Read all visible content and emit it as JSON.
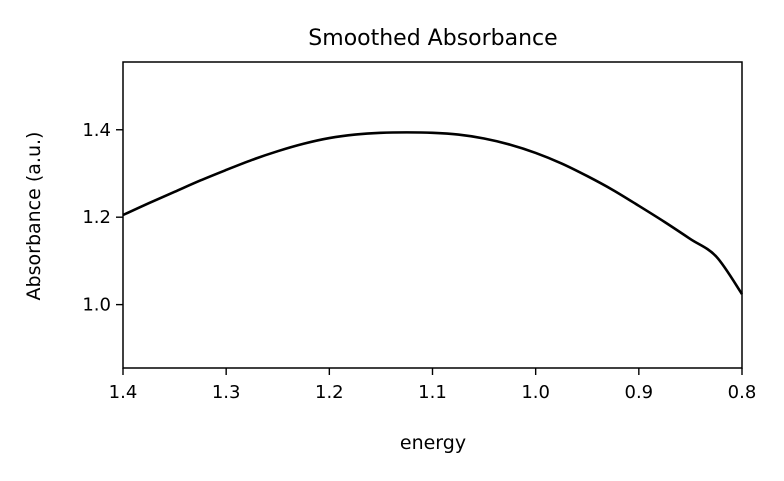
{
  "chart_data": {
    "type": "line",
    "title": "Smoothed Absorbance",
    "xlabel": "energy",
    "ylabel": "Absorbance (a.u.)",
    "xlim": [
      1.4,
      0.8
    ],
    "ylim": [
      0.855,
      1.555
    ],
    "x_inverted": true,
    "grid": false,
    "xticks": [
      1.4,
      1.3,
      1.2,
      1.1,
      1.0,
      0.9,
      0.8
    ],
    "xtick_labels": [
      "1.4",
      "1.3",
      "1.2",
      "1.1",
      "1.0",
      "0.9",
      "0.8"
    ],
    "yticks": [
      1.0,
      1.2,
      1.4
    ],
    "ytick_labels": [
      "1.0",
      "1.2",
      "1.4"
    ],
    "series": [
      {
        "color": "#000000",
        "x": [
          1.4,
          1.375,
          1.35,
          1.325,
          1.3,
          1.275,
          1.25,
          1.225,
          1.2,
          1.175,
          1.15,
          1.125,
          1.1,
          1.075,
          1.05,
          1.025,
          1.0,
          0.975,
          0.95,
          0.925,
          0.9,
          0.875,
          0.85,
          0.825,
          0.8
        ],
        "y": [
          1.205,
          1.232,
          1.258,
          1.284,
          1.308,
          1.331,
          1.351,
          1.368,
          1.381,
          1.389,
          1.393,
          1.394,
          1.393,
          1.389,
          1.38,
          1.366,
          1.347,
          1.323,
          1.294,
          1.262,
          1.226,
          1.189,
          1.15,
          1.11,
          1.024
        ]
      }
    ]
  }
}
